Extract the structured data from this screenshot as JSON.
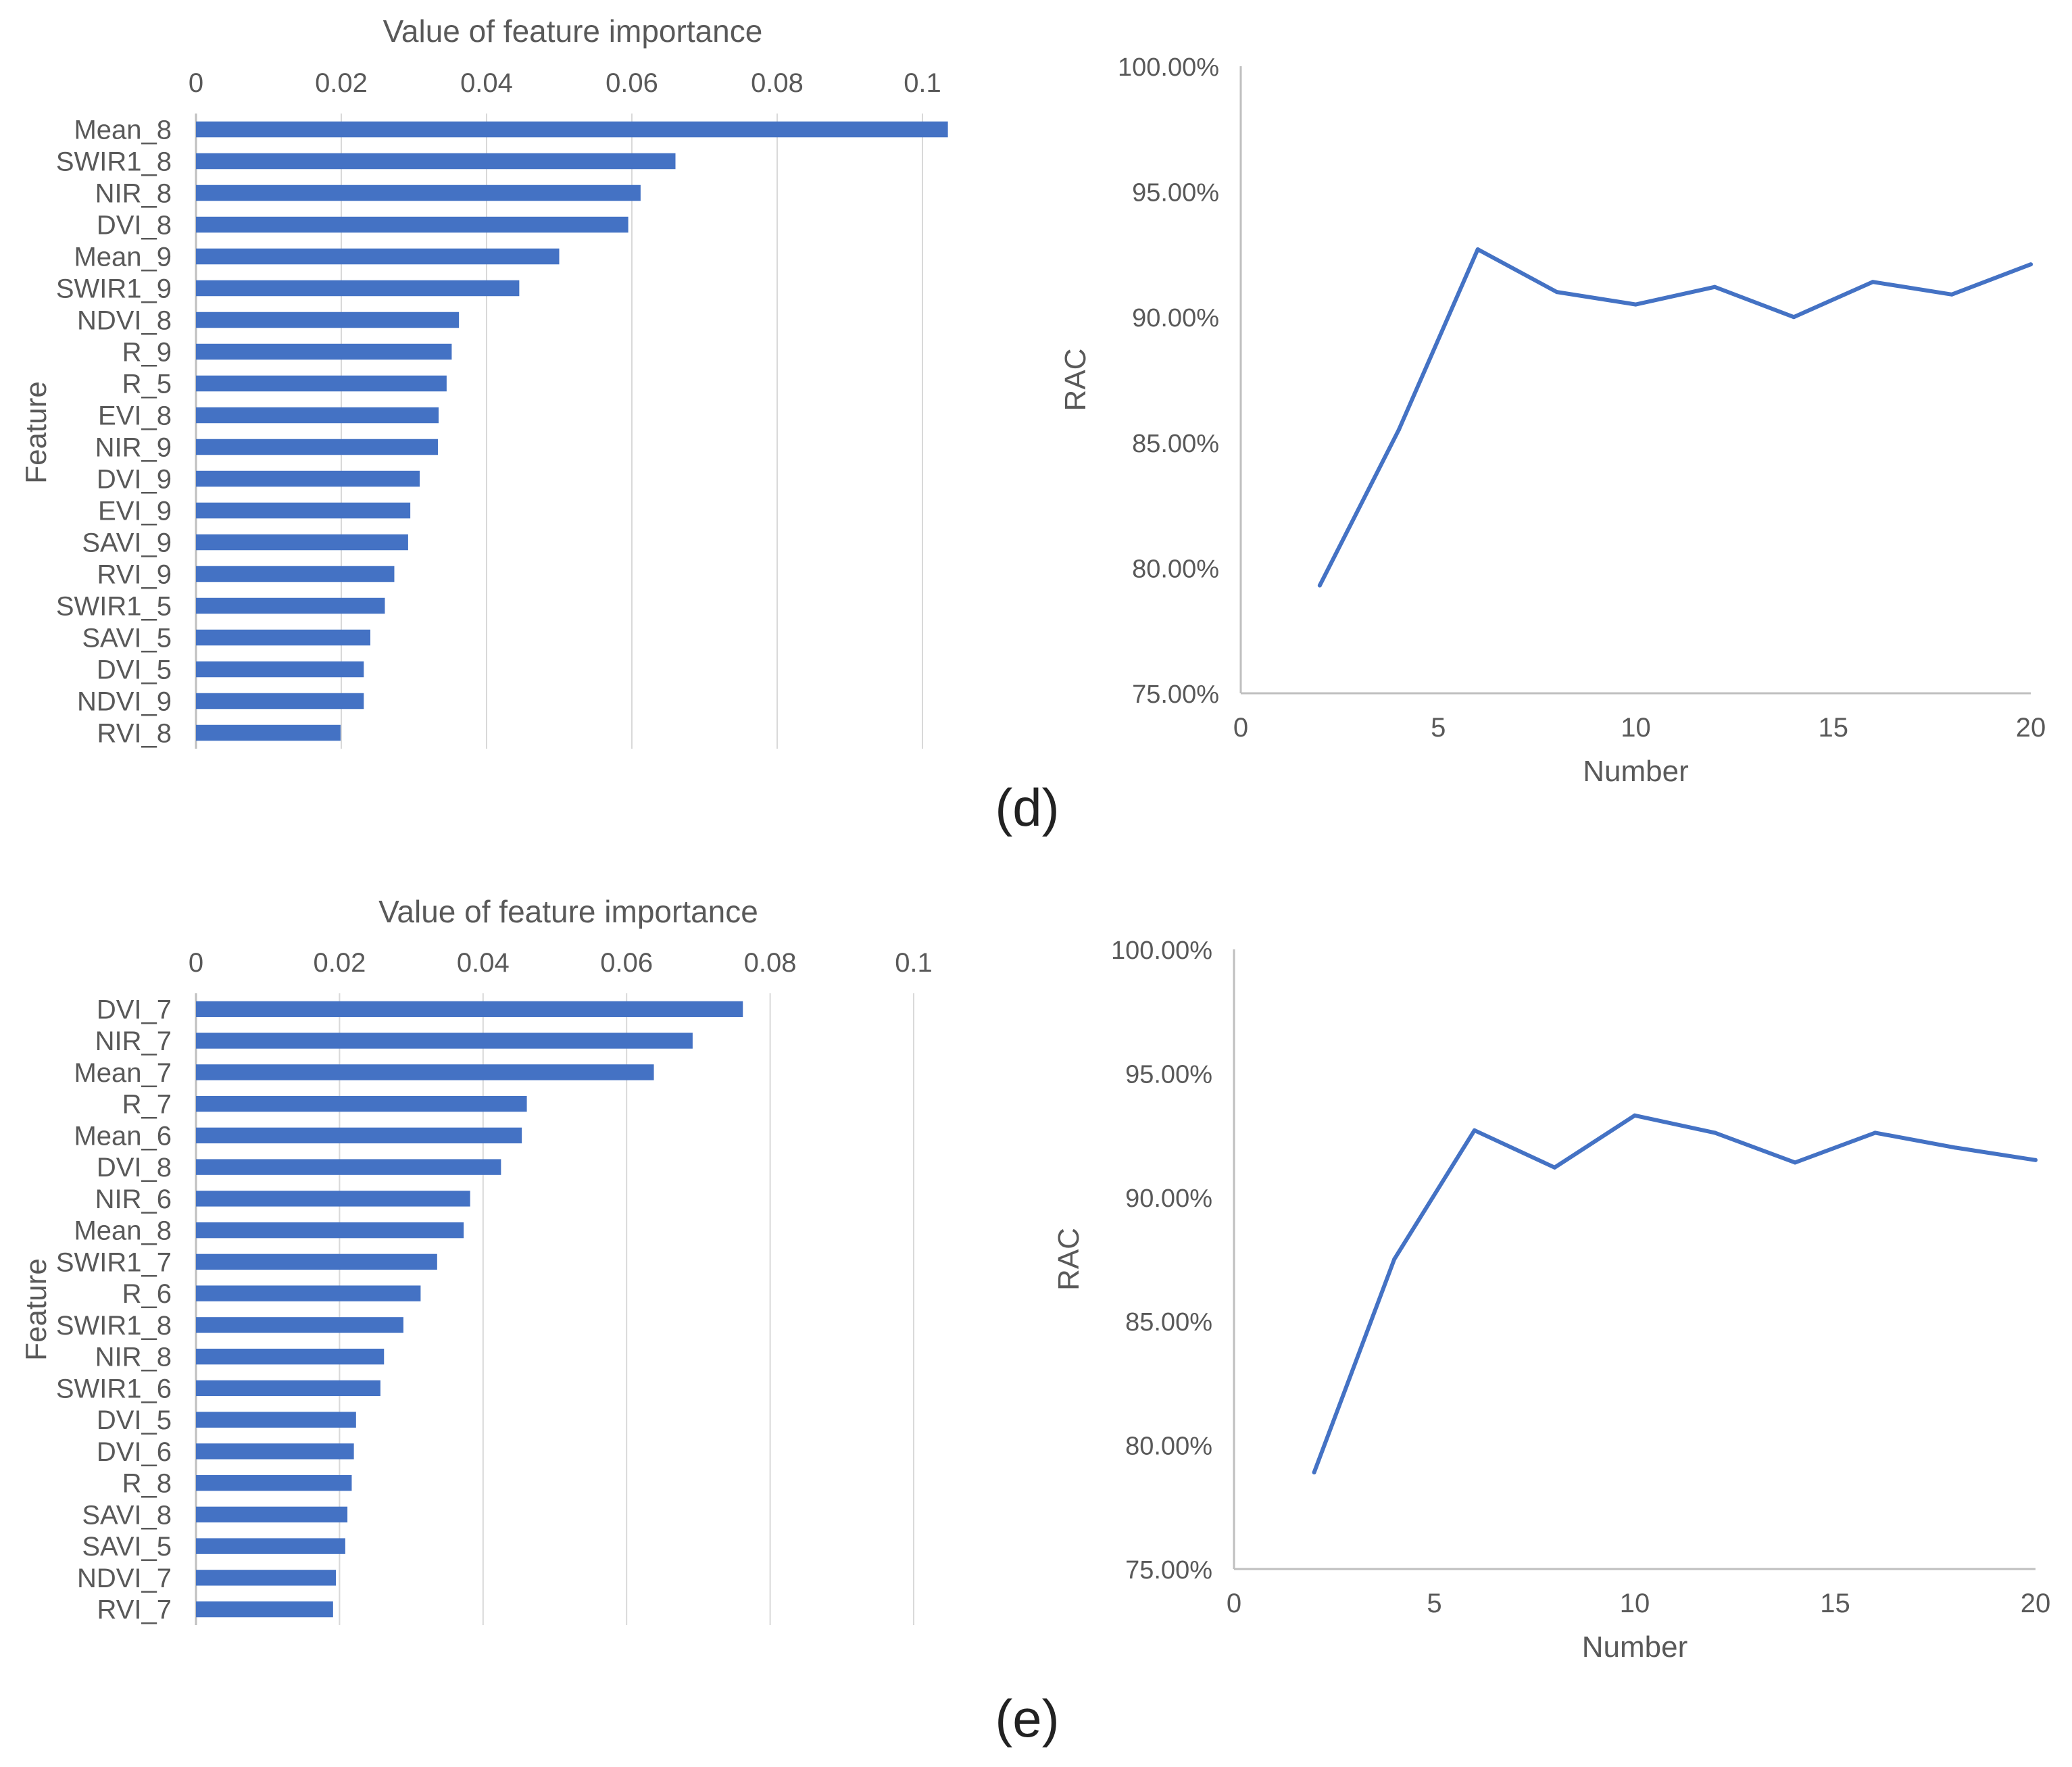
{
  "colors": {
    "bar": "#4472C4",
    "line": "#4472C4",
    "grid": "#d9d9d9",
    "axis": "#bfbfbf",
    "text": "#595959"
  },
  "panels": [
    {
      "label": "(d)"
    },
    {
      "label": "(e)"
    }
  ],
  "chart_data": [
    {
      "panel": "d",
      "type": "bar",
      "orientation": "horizontal",
      "title": "Value of feature importance",
      "xlabel": "",
      "ylabel": "Feature",
      "xlim": [
        0,
        0.1
      ],
      "xticks": [
        "0",
        "0.02",
        "0.04",
        "0.06",
        "0.08",
        "0.1"
      ],
      "categories": [
        "Mean_8",
        "SWIR1_8",
        "NIR_8",
        "DVI_8",
        "Mean_9",
        "SWIR1_9",
        "NDVI_8",
        "R_9",
        "R_5",
        "EVI_8",
        "NIR_9",
        "DVI_9",
        "EVI_9",
        "SAVI_9",
        "RVI_9",
        "SWIR1_5",
        "SAVI_5",
        "DVI_5",
        "NDVI_9",
        "RVI_8"
      ],
      "values": [
        0.1035,
        0.066,
        0.0612,
        0.0595,
        0.05,
        0.0445,
        0.0362,
        0.0352,
        0.0345,
        0.0334,
        0.0333,
        0.0308,
        0.0295,
        0.0292,
        0.0273,
        0.026,
        0.024,
        0.0231,
        0.0231,
        0.0199
      ]
    },
    {
      "panel": "d",
      "type": "line",
      "title": "",
      "xlabel": "Number",
      "ylabel": "RAC",
      "xlim": [
        0,
        20
      ],
      "ylim": [
        75,
        100
      ],
      "xticks": [
        "0",
        "5",
        "10",
        "15",
        "20"
      ],
      "yticks": [
        "75.00%",
        "80.00%",
        "85.00%",
        "90.00%",
        "95.00%",
        "100.00%"
      ],
      "x": [
        2,
        4,
        6,
        8,
        10,
        12,
        14,
        16,
        18,
        20
      ],
      "y": [
        79.3,
        85.5,
        92.7,
        91.0,
        90.5,
        91.2,
        90.0,
        91.4,
        90.9,
        92.1
      ]
    },
    {
      "panel": "e",
      "type": "bar",
      "orientation": "horizontal",
      "title": "Value of feature importance",
      "xlabel": "",
      "ylabel": "Feature",
      "xlim": [
        0,
        0.1
      ],
      "xticks": [
        "0",
        "0.02",
        "0.04",
        "0.06",
        "0.08",
        "0.1"
      ],
      "categories": [
        "DVI_7",
        "NIR_7",
        "Mean_7",
        "R_7",
        "Mean_6",
        "DVI_8",
        "NIR_6",
        "Mean_8",
        "SWIR1_7",
        "R_6",
        "SWIR1_8",
        "NIR_8",
        "SWIR1_6",
        "DVI_5",
        "DVI_6",
        "R_8",
        "SAVI_8",
        "SAVI_5",
        "NDVI_7",
        "RVI_7"
      ],
      "values": [
        0.0762,
        0.0692,
        0.0638,
        0.0461,
        0.0454,
        0.0425,
        0.0382,
        0.0373,
        0.0336,
        0.0313,
        0.0289,
        0.0262,
        0.0257,
        0.0223,
        0.022,
        0.0217,
        0.0211,
        0.0208,
        0.0195,
        0.0191
      ]
    },
    {
      "panel": "e",
      "type": "line",
      "title": "",
      "xlabel": "Number",
      "ylabel": "RAC",
      "xlim": [
        0,
        20
      ],
      "ylim": [
        75,
        100
      ],
      "xticks": [
        "0",
        "5",
        "10",
        "15",
        "20"
      ],
      "yticks": [
        "75.00%",
        "80.00%",
        "85.00%",
        "90.00%",
        "95.00%",
        "100.00%"
      ],
      "x": [
        2,
        4,
        6,
        8,
        10,
        12,
        14,
        16,
        18,
        20
      ],
      "y": [
        78.9,
        87.5,
        92.7,
        91.2,
        93.3,
        92.6,
        91.4,
        92.6,
        92.0,
        91.5
      ]
    }
  ]
}
